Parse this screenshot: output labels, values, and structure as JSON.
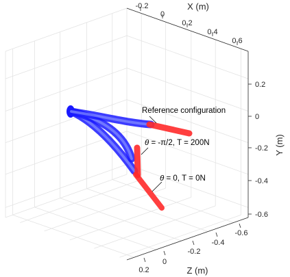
{
  "chart_data": {
    "type": "line",
    "projection": "3d",
    "grid": true,
    "axes": {
      "x": {
        "label": "X (m)",
        "ticks": [
          "-0.2",
          "0",
          "0.2",
          "0.4",
          "0.6"
        ]
      },
      "y": {
        "label": "Y (m)",
        "ticks": [
          "0.2",
          "0",
          "-0.2",
          "-0.4",
          "-0.6"
        ]
      },
      "z": {
        "label": "Z (m)",
        "ticks": [
          "-0.6",
          "-0.4",
          "-0.2",
          "0",
          "0.2"
        ]
      }
    },
    "annotations": [
      {
        "text": "Reference configuration"
      },
      {
        "prefix": "θ",
        "text": " = -π/2, T = 200N"
      },
      {
        "prefix": "θ",
        "text": " = 0, T = 0N"
      }
    ],
    "colors": {
      "continuum_robot": "#1a1aff",
      "end_link": "#ff2a2a"
    }
  }
}
